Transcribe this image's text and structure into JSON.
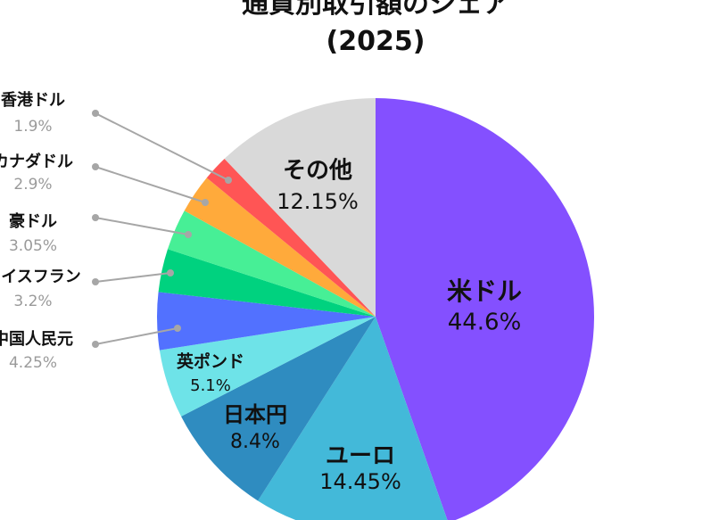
{
  "chart_data": {
    "type": "pie",
    "title": "通貨別取引額のシェア",
    "subtitle": "(2025)",
    "start_angle": "12 o'clock",
    "direction": "clockwise",
    "slices": [
      {
        "label": "米ドル",
        "value": 44.6,
        "value_label": "44.6%",
        "color": "#8450ff",
        "label_position": "inside"
      },
      {
        "label": "ユーロ",
        "value": 14.45,
        "value_label": "14.45%",
        "color": "#43b9d9",
        "label_position": "inside"
      },
      {
        "label": "日本円",
        "value": 8.4,
        "value_label": "8.4%",
        "color": "#2f8cc0",
        "label_position": "inside"
      },
      {
        "label": "英ポンド",
        "value": 5.1,
        "value_label": "5.1%",
        "color": "#6ee3e8",
        "label_position": "inside"
      },
      {
        "label": "中国人民元",
        "value": 4.25,
        "value_label": "4.25%",
        "color": "#5271ff",
        "label_position": "outside"
      },
      {
        "label": "スイスフラン",
        "value": 3.2,
        "value_label": "3.2%",
        "color": "#00d27f",
        "label_position": "outside"
      },
      {
        "label": "豪ドル",
        "value": 3.05,
        "value_label": "3.05%",
        "color": "#47ef96",
        "label_position": "outside"
      },
      {
        "label": "カナダドル",
        "value": 2.9,
        "value_label": "2.9%",
        "color": "#ffaa3b",
        "label_position": "outside"
      },
      {
        "label": "香港ドル",
        "value": 1.9,
        "value_label": "1.9%",
        "color": "#ff5555",
        "label_position": "outside"
      },
      {
        "label": "その他",
        "value": 12.15,
        "value_label": "12.15%",
        "color": "#d9d9d9",
        "label_position": "inside"
      }
    ],
    "legend": "none"
  }
}
